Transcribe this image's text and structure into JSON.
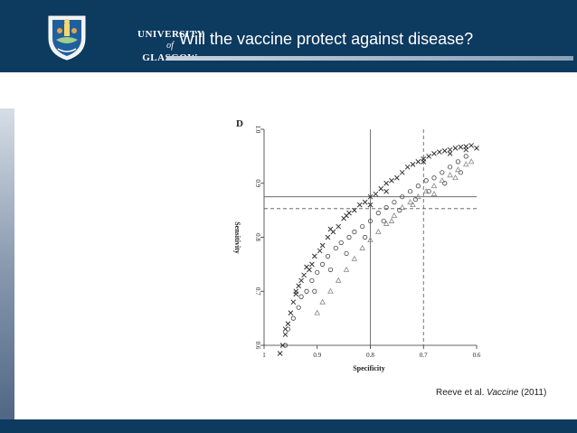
{
  "header": {
    "title": "Will the vaccine protect against disease?",
    "logo": {
      "line1": "UNIVERSITY",
      "line2": "of",
      "line3": "GLASGOW",
      "icon": "university-crest-icon"
    }
  },
  "colors": {
    "header_bg": "#0d3a5f",
    "footer_bg": "#0d3a5f",
    "accent_rule": "#8aa0b6"
  },
  "citation": {
    "authors": "Reeve et al.",
    "journal": "Vaccine",
    "year": "(2011)"
  },
  "chart_data": {
    "type": "scatter",
    "panel_label": "D",
    "xlabel": "Specificity",
    "ylabel": "Sensitivity",
    "x_reversed": true,
    "xlim": [
      1.0,
      0.6
    ],
    "ylim": [
      0.6,
      1.0
    ],
    "x_ticks": [
      "1",
      "0.9",
      "0.8",
      "0.7",
      "0.6"
    ],
    "y_ticks": [
      "0.6",
      "0.7",
      "0.8",
      "0.9",
      "1.0"
    ],
    "reference_lines": [
      {
        "orientation": "vertical",
        "value": 0.8,
        "style": "solid"
      },
      {
        "orientation": "vertical",
        "value": 0.7,
        "style": "dashed"
      },
      {
        "orientation": "horizontal",
        "value": 0.875,
        "style": "solid"
      },
      {
        "orientation": "horizontal",
        "value": 0.853,
        "style": "dashed"
      }
    ],
    "series": [
      {
        "marker": "x",
        "points": [
          [
            0.97,
            0.585
          ],
          [
            0.965,
            0.6
          ],
          [
            0.96,
            0.62
          ],
          [
            0.955,
            0.64
          ],
          [
            0.95,
            0.66
          ],
          [
            0.945,
            0.68
          ],
          [
            0.94,
            0.695
          ],
          [
            0.935,
            0.71
          ],
          [
            0.93,
            0.72
          ],
          [
            0.925,
            0.73
          ],
          [
            0.92,
            0.745
          ],
          [
            0.91,
            0.75
          ],
          [
            0.905,
            0.765
          ],
          [
            0.895,
            0.775
          ],
          [
            0.89,
            0.785
          ],
          [
            0.88,
            0.8
          ],
          [
            0.87,
            0.81
          ],
          [
            0.86,
            0.82
          ],
          [
            0.85,
            0.835
          ],
          [
            0.84,
            0.845
          ],
          [
            0.83,
            0.85
          ],
          [
            0.82,
            0.86
          ],
          [
            0.81,
            0.865
          ],
          [
            0.8,
            0.875
          ],
          [
            0.79,
            0.88
          ],
          [
            0.78,
            0.89
          ],
          [
            0.77,
            0.9
          ],
          [
            0.76,
            0.905
          ],
          [
            0.75,
            0.91
          ],
          [
            0.74,
            0.92
          ],
          [
            0.73,
            0.93
          ],
          [
            0.72,
            0.935
          ],
          [
            0.71,
            0.94
          ],
          [
            0.7,
            0.945
          ],
          [
            0.69,
            0.95
          ],
          [
            0.68,
            0.955
          ],
          [
            0.67,
            0.958
          ],
          [
            0.66,
            0.96
          ],
          [
            0.65,
            0.962
          ],
          [
            0.64,
            0.965
          ],
          [
            0.63,
            0.967
          ],
          [
            0.62,
            0.968
          ],
          [
            0.61,
            0.97
          ],
          [
            0.96,
            0.63
          ],
          [
            0.94,
            0.7
          ],
          [
            0.915,
            0.74
          ],
          [
            0.875,
            0.815
          ],
          [
            0.845,
            0.84
          ],
          [
            0.8,
            0.86
          ],
          [
            0.77,
            0.885
          ],
          [
            0.7,
            0.94
          ],
          [
            0.65,
            0.955
          ],
          [
            0.62,
            0.962
          ],
          [
            0.6,
            0.965
          ]
        ]
      },
      {
        "marker": "circle",
        "points": [
          [
            0.96,
            0.6
          ],
          [
            0.955,
            0.63
          ],
          [
            0.945,
            0.65
          ],
          [
            0.935,
            0.67
          ],
          [
            0.93,
            0.69
          ],
          [
            0.92,
            0.7
          ],
          [
            0.91,
            0.72
          ],
          [
            0.9,
            0.735
          ],
          [
            0.89,
            0.75
          ],
          [
            0.88,
            0.765
          ],
          [
            0.865,
            0.78
          ],
          [
            0.855,
            0.79
          ],
          [
            0.84,
            0.8
          ],
          [
            0.83,
            0.81
          ],
          [
            0.815,
            0.82
          ],
          [
            0.8,
            0.83
          ],
          [
            0.785,
            0.845
          ],
          [
            0.77,
            0.855
          ],
          [
            0.755,
            0.865
          ],
          [
            0.74,
            0.875
          ],
          [
            0.725,
            0.885
          ],
          [
            0.71,
            0.895
          ],
          [
            0.695,
            0.905
          ],
          [
            0.68,
            0.91
          ],
          [
            0.665,
            0.92
          ],
          [
            0.65,
            0.93
          ],
          [
            0.635,
            0.94
          ],
          [
            0.62,
            0.95
          ],
          [
            0.905,
            0.7
          ],
          [
            0.875,
            0.74
          ],
          [
            0.845,
            0.77
          ],
          [
            0.81,
            0.8
          ],
          [
            0.775,
            0.83
          ],
          [
            0.745,
            0.85
          ],
          [
            0.715,
            0.87
          ],
          [
            0.69,
            0.885
          ],
          [
            0.66,
            0.9
          ],
          [
            0.63,
            0.92
          ]
        ]
      },
      {
        "marker": "triangle",
        "points": [
          [
            0.9,
            0.66
          ],
          [
            0.89,
            0.68
          ],
          [
            0.875,
            0.7
          ],
          [
            0.86,
            0.72
          ],
          [
            0.845,
            0.74
          ],
          [
            0.83,
            0.76
          ],
          [
            0.815,
            0.78
          ],
          [
            0.8,
            0.795
          ],
          [
            0.785,
            0.81
          ],
          [
            0.77,
            0.825
          ],
          [
            0.755,
            0.84
          ],
          [
            0.74,
            0.855
          ],
          [
            0.725,
            0.865
          ],
          [
            0.71,
            0.875
          ],
          [
            0.695,
            0.885
          ],
          [
            0.68,
            0.895
          ],
          [
            0.665,
            0.905
          ],
          [
            0.65,
            0.915
          ],
          [
            0.635,
            0.925
          ],
          [
            0.62,
            0.935
          ],
          [
            0.61,
            0.94
          ],
          [
            0.76,
            0.83
          ],
          [
            0.72,
            0.86
          ],
          [
            0.68,
            0.88
          ],
          [
            0.64,
            0.91
          ]
        ]
      }
    ]
  }
}
